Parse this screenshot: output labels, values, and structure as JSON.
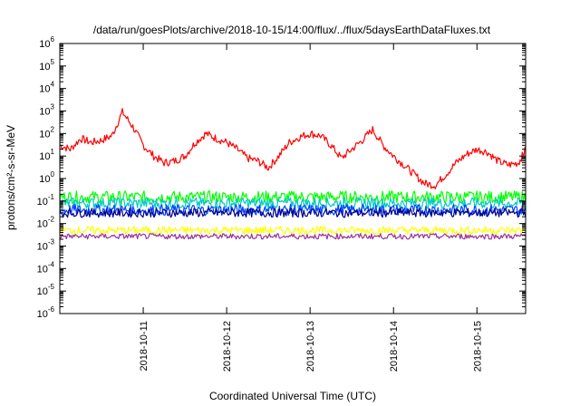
{
  "chart_data": {
    "type": "line",
    "title": "/data/run/goesPlots/archive/2018-10-15/14:00/flux/../flux/5daysEarthDataFluxes.txt",
    "xlabel": "Coordinated Universal Time (UTC)",
    "ylabel": "protons/cm²-s-sr-MeV",
    "yscale": "log",
    "ylim": [
      "1e-6",
      "1e6"
    ],
    "xlim": [
      "2018-10-10 00:00",
      "2018-10-15 14:00"
    ],
    "x_ticks": [
      "2018-10-11",
      "2018-10-12",
      "2018-10-13",
      "2018-10-14",
      "2018-10-15"
    ],
    "y_ticks": [
      {
        "base": "10",
        "exp": "-6"
      },
      {
        "base": "10",
        "exp": "-5"
      },
      {
        "base": "10",
        "exp": "-4"
      },
      {
        "base": "10",
        "exp": "-3"
      },
      {
        "base": "10",
        "exp": "-2"
      },
      {
        "base": "10",
        "exp": "-1"
      },
      {
        "base": "10",
        "exp": "0"
      },
      {
        "base": "10",
        "exp": "1"
      },
      {
        "base": "10",
        "exp": "2"
      },
      {
        "base": "10",
        "exp": "3"
      },
      {
        "base": "10",
        "exp": "4"
      },
      {
        "base": "10",
        "exp": "5"
      },
      {
        "base": "10",
        "exp": "6"
      }
    ],
    "grid": false,
    "legend": "none",
    "series": [
      {
        "color": "#ff0000",
        "x": [
          "2018-10-10 00:00",
          "2018-10-10 03:00",
          "2018-10-10 06:00",
          "2018-10-10 09:00",
          "2018-10-10 12:00",
          "2018-10-10 15:00",
          "2018-10-10 18:00",
          "2018-10-10 21:00",
          "2018-10-11 00:00",
          "2018-10-11 03:00",
          "2018-10-11 06:00",
          "2018-10-11 09:00",
          "2018-10-11 12:00",
          "2018-10-11 15:00",
          "2018-10-11 18:00",
          "2018-10-11 21:00",
          "2018-10-12 00:00",
          "2018-10-12 03:00",
          "2018-10-12 06:00",
          "2018-10-12 09:00",
          "2018-10-12 12:00",
          "2018-10-12 15:00",
          "2018-10-12 18:00",
          "2018-10-12 21:00",
          "2018-10-13 00:00",
          "2018-10-13 03:00",
          "2018-10-13 06:00",
          "2018-10-13 09:00",
          "2018-10-13 12:00",
          "2018-10-13 15:00",
          "2018-10-13 18:00",
          "2018-10-13 21:00",
          "2018-10-14 00:00",
          "2018-10-14 03:00",
          "2018-10-14 06:00",
          "2018-10-14 09:00",
          "2018-10-14 12:00",
          "2018-10-14 15:00",
          "2018-10-14 18:00",
          "2018-10-14 21:00",
          "2018-10-15 00:00",
          "2018-10-15 03:00",
          "2018-10-15 06:00",
          "2018-10-15 09:00",
          "2018-10-15 12:00",
          "2018-10-15 14:00"
        ],
        "y": [
          30,
          20,
          60,
          40,
          50,
          80,
          900,
          200,
          30,
          10,
          5,
          6,
          10,
          40,
          100,
          60,
          40,
          20,
          8,
          6,
          3,
          10,
          40,
          70,
          100,
          80,
          30,
          8,
          20,
          50,
          150,
          30,
          10,
          4,
          1.5,
          0.6,
          0.5,
          1.5,
          5,
          12,
          20,
          15,
          6,
          4,
          5,
          20
        ]
      },
      {
        "color": "#00ff00",
        "x": [
          "2018-10-10 00:00",
          "2018-10-15 14:00"
        ],
        "y": [
          0.15,
          0.15
        ]
      },
      {
        "color": "#00c8c8",
        "x": [
          "2018-10-10 00:00",
          "2018-10-15 14:00"
        ],
        "y": [
          0.08,
          0.08
        ]
      },
      {
        "color": "#0044ff",
        "x": [
          "2018-10-10 00:00",
          "2018-10-15 14:00"
        ],
        "y": [
          0.04,
          0.04
        ]
      },
      {
        "color": "#00008b",
        "x": [
          "2018-10-10 00:00",
          "2018-10-15 14:00"
        ],
        "y": [
          0.03,
          0.03
        ]
      },
      {
        "color": "#ffff00",
        "x": [
          "2018-10-10 00:00",
          "2018-10-15 14:00"
        ],
        "y": [
          0.005,
          0.005
        ]
      },
      {
        "color": "#993399",
        "x": [
          "2018-10-10 00:00",
          "2018-10-15 14:00"
        ],
        "y": [
          0.0027,
          0.0027
        ]
      }
    ]
  }
}
